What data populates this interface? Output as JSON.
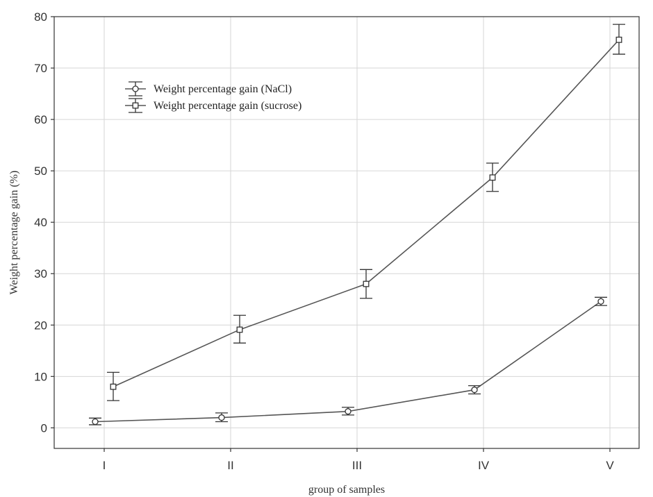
{
  "chart_data": {
    "type": "line",
    "xlabel": "group of samples",
    "ylabel": "Weight percentage gain (%)",
    "categories": [
      "I",
      "II",
      "III",
      "IV",
      "V"
    ],
    "ylim": [
      -4,
      80
    ],
    "yticks": [
      0,
      10,
      20,
      30,
      40,
      50,
      60,
      70,
      80
    ],
    "grid": true,
    "legend_position": "top-left",
    "series": [
      {
        "name": "Weight percentage gain (NaCl)",
        "marker": "circle",
        "values": [
          1.2,
          2.0,
          3.2,
          7.4,
          24.6
        ],
        "err_low": [
          0.6,
          1.2,
          2.5,
          6.6,
          23.8
        ],
        "err_high": [
          1.9,
          2.9,
          4.0,
          8.2,
          25.4
        ]
      },
      {
        "name": "Weight percentage gain (sucrose)",
        "marker": "square",
        "values": [
          8.0,
          19.1,
          28.0,
          48.7,
          75.5
        ],
        "err_low": [
          5.3,
          16.5,
          25.2,
          46.0,
          72.7
        ],
        "err_high": [
          10.8,
          21.9,
          30.8,
          51.5,
          78.5
        ]
      }
    ]
  }
}
